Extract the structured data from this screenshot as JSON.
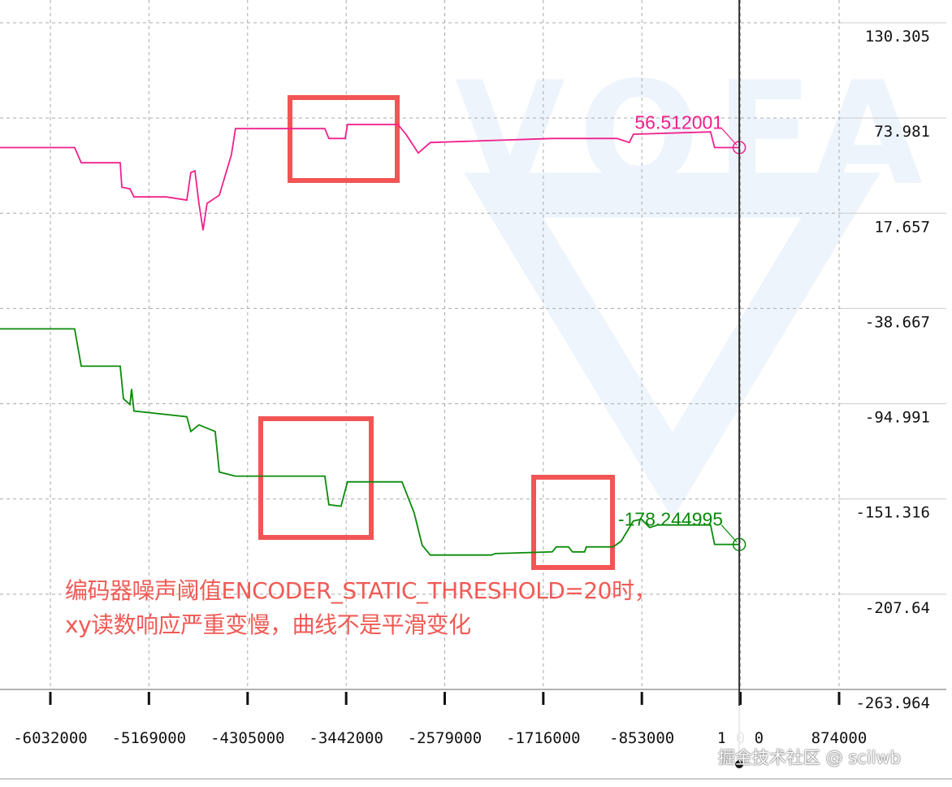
{
  "chart_data": {
    "type": "line",
    "xlim": [
      -6473000,
      874000
    ],
    "ylim": [
      -263.964,
      130.305
    ],
    "grid": true,
    "x_ticks": [
      -6032000,
      -5169000,
      -4305000,
      -3442000,
      -2579000,
      -1716000,
      -853000,
      10000,
      874000
    ],
    "x_tick_labels": [
      "-6032000",
      "-5169000",
      "-4305000",
      "-3442000",
      "-2579000",
      "-1716000",
      "-853000",
      "1 0 0",
      "874000"
    ],
    "y_ticks": [
      130.305,
      73.981,
      17.657,
      -38.667,
      -94.991,
      -151.316,
      -207.64,
      -263.964
    ],
    "y_tick_labels": [
      "130.305",
      "73.981",
      "17.657",
      "-38.667",
      "-94.991",
      "-151.316",
      "-207.64",
      "-263.964"
    ],
    "cursor_x": 0,
    "series": [
      {
        "color": "#f0208c",
        "cursor_value_label": "56.512001",
        "x": [
          -6473000,
          -5819000,
          -5762000,
          -5420000,
          -5406000,
          -5335000,
          -5300000,
          -5015000,
          -4837000,
          -4802000,
          -4766000,
          -4731000,
          -4695000,
          -4660000,
          -4553000,
          -4447000,
          -4411000,
          -3629000,
          -3593000,
          -3451000,
          -3430000,
          -2989000,
          -2918000,
          -2811000,
          -2705000,
          -1638000,
          -1070000,
          -963000,
          -927000,
          -251000,
          -216000,
          0
        ],
        "y": [
          56.5,
          56.5,
          47.5,
          47.5,
          33.1,
          32.1,
          27.3,
          27.3,
          25.4,
          41.7,
          42.7,
          23.5,
          7.6,
          23.5,
          28.3,
          52.3,
          67.7,
          67.7,
          61.9,
          61.9,
          70.1,
          70.1,
          64.4,
          53.3,
          59.5,
          61.9,
          61.9,
          59.5,
          64.4,
          65.8,
          56.5,
          56.512001
        ]
      },
      {
        "color": "#0a8a0a",
        "cursor_value_label": "-178.244995",
        "x": [
          -6473000,
          -5819000,
          -5762000,
          -5420000,
          -5392000,
          -5335000,
          -5321000,
          -5300000,
          -4837000,
          -4802000,
          -4731000,
          -4589000,
          -4553000,
          -4411000,
          -3629000,
          -3593000,
          -3487000,
          -3430000,
          -2953000,
          -2847000,
          -2776000,
          -2705000,
          -2171000,
          -2136000,
          -1638000,
          -1602000,
          -1496000,
          -1460000,
          -1354000,
          -1339000,
          -1105000,
          -1034000,
          -927000,
          -856000,
          -785000,
          -714000,
          -251000,
          -216000,
          0
        ],
        "y": [
          -50.7,
          -50.7,
          -72.8,
          -72.8,
          -92.1,
          -95.5,
          -86.3,
          -99.3,
          -102.7,
          -111.4,
          -107.5,
          -111.4,
          -135.4,
          -137.8,
          -137.8,
          -154.7,
          -155.6,
          -141.2,
          -141.2,
          -159.5,
          -178.7,
          -184.5,
          -184.5,
          -183.6,
          -182.6,
          -179.7,
          -179.7,
          -182.6,
          -182.6,
          -179.7,
          -179.7,
          -176.3,
          -164.3,
          -163.3,
          -168.2,
          -166.7,
          -166.7,
          -178.2,
          -178.244995
        ]
      }
    ],
    "annotation_boxes_color": "#f25555",
    "annotation_text": [
      "编码器噪声阈值ENCODER_STATIC_THRESHOLD=20时，",
      "xy读数响应严重变慢，曲线不是平滑变化"
    ]
  },
  "watermarks": {
    "logo": "VOFA",
    "site": "掘金技术社区 @ scilwb"
  }
}
